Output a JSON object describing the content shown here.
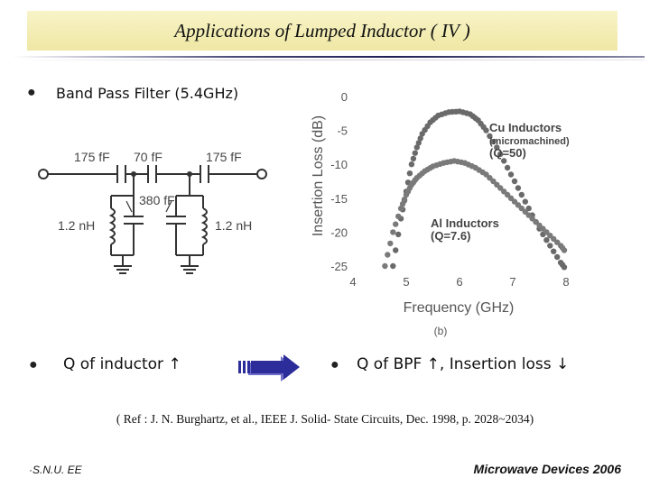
{
  "slide": {
    "title": "Applications of Lumped Inductor ( IV )"
  },
  "bullets": {
    "b1": "Band Pass Filter (5.4GHz)",
    "b2": "Q of inductor ↑",
    "b3": "Q of BPF ↑, Insertion loss ↓"
  },
  "circuit": {
    "c_left": "175 fF",
    "c_mid": "70 fF",
    "c_right": "175 fF",
    "c_shunt": "380 fF",
    "l_left": "1.2 nH",
    "l_right": "1.2 nH"
  },
  "chart_data": {
    "type": "scatter",
    "ylabel": "Insertion Loss (dB)",
    "xlabel": "Frequency (GHz)",
    "xlim": [
      4,
      8
    ],
    "ylim": [
      -25,
      0
    ],
    "x_ticks": [
      "4",
      "5",
      "6",
      "7",
      "8"
    ],
    "y_ticks": [
      "0",
      "-5",
      "-10",
      "-15",
      "-20",
      "-25"
    ],
    "caption": "(b)",
    "series": [
      {
        "name": "Cu Inductors (micromachined) (Q=50)",
        "label_lines": [
          "Cu Inductors",
          "(micromachined)",
          "(Q=50)"
        ],
        "x": [
          4.75,
          4.9,
          5.0,
          5.1,
          5.2,
          5.3,
          5.45,
          5.6,
          5.8,
          6.0,
          6.2,
          6.35,
          6.5,
          6.7,
          6.9,
          7.1,
          7.3,
          7.5,
          7.7,
          7.9,
          8.0
        ],
        "y": [
          -25,
          -18,
          -14,
          -10,
          -7.5,
          -5.5,
          -3.8,
          -2.8,
          -2.3,
          -2.2,
          -2.6,
          -3.5,
          -5,
          -7.5,
          -10.5,
          -13.5,
          -16.5,
          -19.5,
          -22,
          -24.5,
          -25.5
        ]
      },
      {
        "name": "Al Inductors (Q=7.6)",
        "label_lines": [
          "Al Inductors",
          "(Q=7.6)"
        ],
        "x": [
          4.6,
          4.75,
          4.9,
          5.0,
          5.1,
          5.2,
          5.35,
          5.5,
          5.7,
          5.9,
          6.1,
          6.3,
          6.5,
          6.7,
          6.9,
          7.1,
          7.3,
          7.5,
          7.7,
          7.9,
          8.0
        ],
        "y": [
          -25,
          -20,
          -16.5,
          -14.5,
          -13,
          -12,
          -11,
          -10.3,
          -9.8,
          -9.5,
          -9.8,
          -10.5,
          -11.5,
          -13,
          -14.5,
          -16,
          -17.5,
          -19,
          -20.5,
          -22,
          -23
        ]
      }
    ]
  },
  "reference": "( Ref : J. N. Burghartz, et al., IEEE J. Solid- State Circuits, Dec. 1998, p. 2028~2034)",
  "footer": {
    "left": "·S.N.U. EE",
    "right": "Microwave Devices 2006"
  }
}
